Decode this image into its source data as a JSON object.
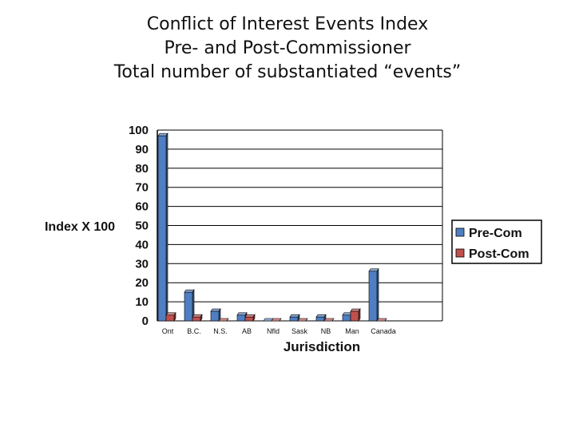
{
  "slide": {
    "title_lines": [
      "Conflict of Interest Events Index",
      "Pre- and Post-Commissioner",
      "Total number of substantiated “events”"
    ]
  },
  "colors": {
    "pre_com": "#4f7fc2",
    "post_com": "#c0504d",
    "gridline": "#000000",
    "background": "#ffffff"
  },
  "chart_data": {
    "type": "bar",
    "xlabel": "Jurisdiction",
    "ylabel": "Index X 100",
    "ylim": [
      0,
      100
    ],
    "yticks": [
      0,
      10,
      20,
      30,
      40,
      50,
      60,
      70,
      80,
      90,
      100
    ],
    "grid": true,
    "legend_position": "right",
    "categories": [
      "Ont",
      "B.C.",
      "N.S.",
      "AB",
      "Nfld",
      "Sask",
      "NB",
      "Man",
      "Canada"
    ],
    "series": [
      {
        "name": "Pre-Com",
        "values": [
          97,
          15,
          5,
          3,
          0,
          2,
          2,
          3,
          26
        ]
      },
      {
        "name": "Post-Com",
        "values": [
          3,
          2,
          0,
          2,
          0,
          0,
          0,
          5,
          0
        ]
      }
    ]
  }
}
